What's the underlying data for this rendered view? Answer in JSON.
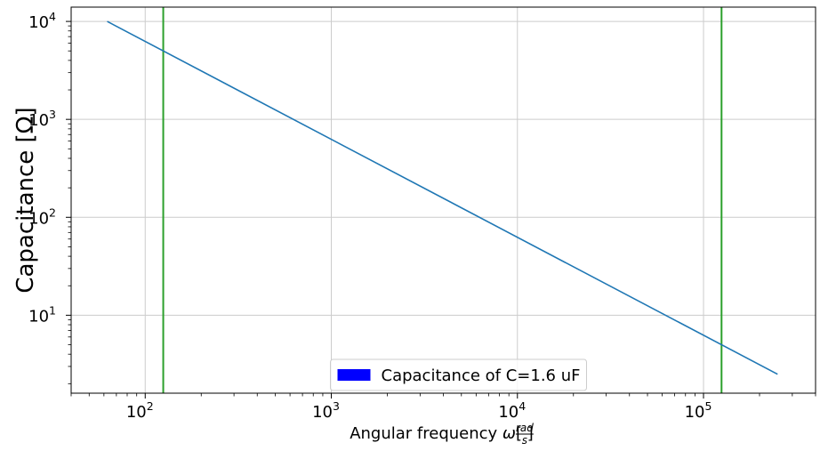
{
  "chart_data": {
    "type": "line",
    "xscale": "log",
    "yscale": "log",
    "xlim": [
      40,
      400000
    ],
    "ylim": [
      1.6,
      14000
    ],
    "xticks": [
      {
        "value": 100,
        "base": "10",
        "exp": "2"
      },
      {
        "value": 1000,
        "base": "10",
        "exp": "3"
      },
      {
        "value": 10000,
        "base": "10",
        "exp": "4"
      },
      {
        "value": 100000,
        "base": "10",
        "exp": "5"
      }
    ],
    "yticks": [
      {
        "value": 10,
        "base": "10",
        "exp": "1"
      },
      {
        "value": 100,
        "base": "10",
        "exp": "2"
      },
      {
        "value": 1000,
        "base": "10",
        "exp": "3"
      },
      {
        "value": 10000,
        "base": "10",
        "exp": "4"
      }
    ],
    "xlabel": "Angular frequency ω[rad/s]",
    "xlabel_parts": {
      "main": "Angular frequency ",
      "omega": "ω",
      "num": "rad",
      "den": "s"
    },
    "ylabel": "Capacitance [Ω]",
    "grid": true,
    "series": [
      {
        "name": "Capacitance of C=1.6 uF",
        "color": "#1f77b4",
        "x": [
          62.5,
          250000
        ],
        "y": [
          10000,
          2.5
        ]
      }
    ],
    "vlines": [
      {
        "x": 125,
        "color": "#2ca02c"
      },
      {
        "x": 125000,
        "color": "#2ca02c"
      }
    ],
    "legend": {
      "placement": "lower center",
      "label": "Capacitance of C=1.6 uF",
      "patch_color": "#0000ff"
    }
  }
}
